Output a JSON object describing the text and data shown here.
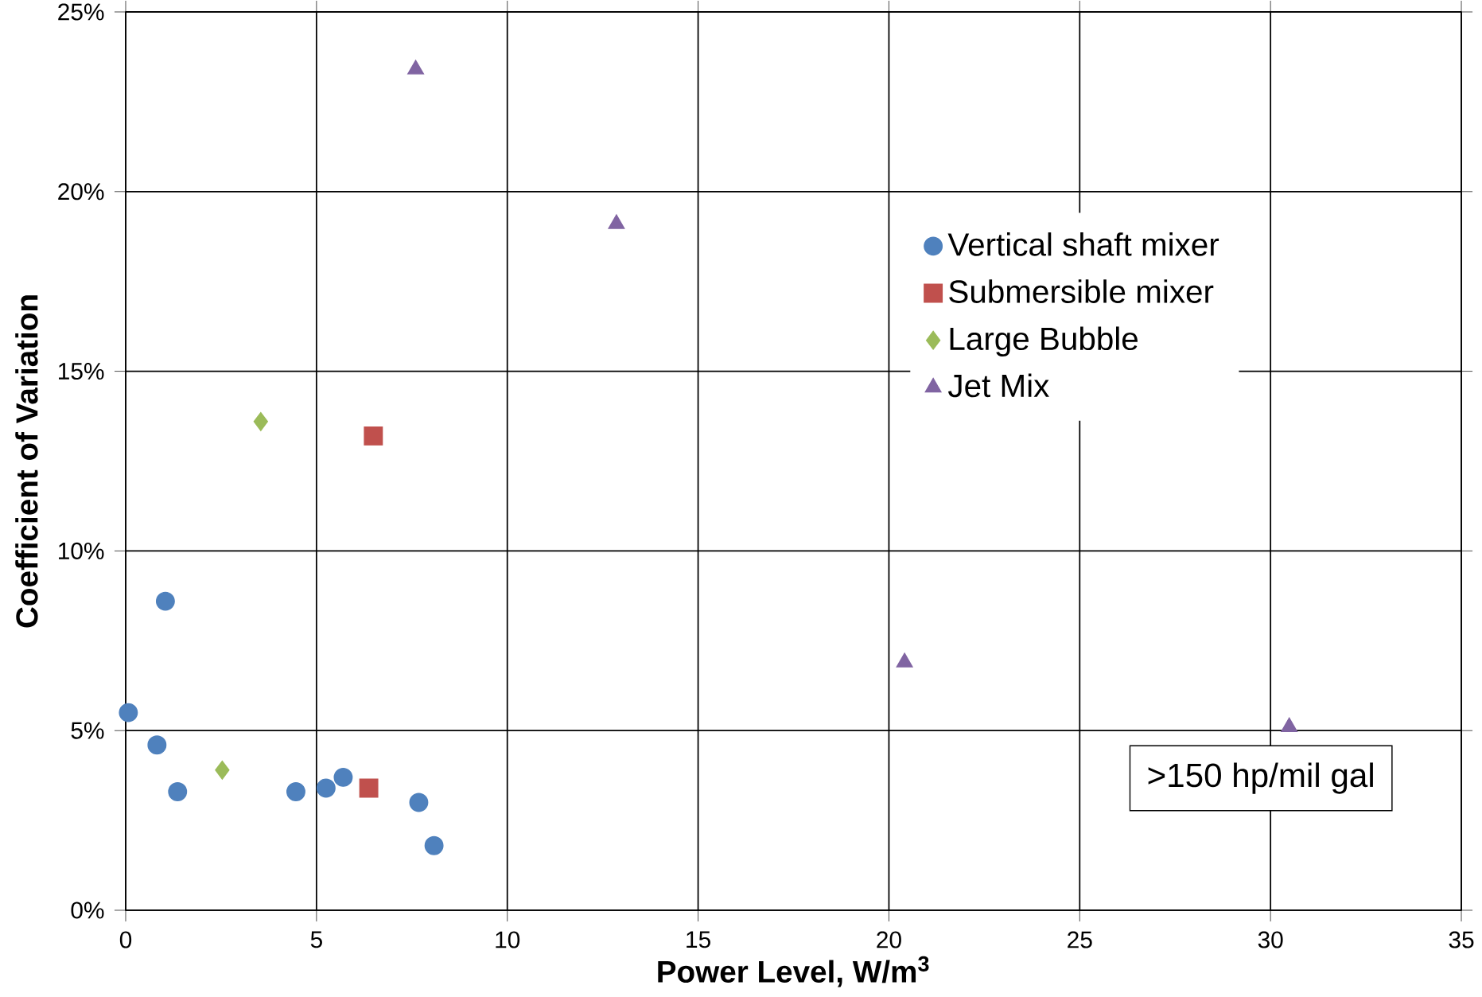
{
  "chart_data": {
    "type": "scatter",
    "xlabel": "Power Level, W/m$^{3}$",
    "ylabel": "Coefficient of Variation",
    "xlim": [
      0,
      35
    ],
    "ylim": [
      0,
      25
    ],
    "xticks": [
      0,
      5,
      10,
      15,
      20,
      25,
      30,
      35
    ],
    "yticks": [
      {
        "value": 0,
        "label": "0%"
      },
      {
        "value": 5,
        "label": "5%"
      },
      {
        "value": 10,
        "label": "10%"
      },
      {
        "value": 15,
        "label": "15%"
      },
      {
        "value": 20,
        "label": "20%"
      },
      {
        "value": 25,
        "label": "25%"
      }
    ],
    "grid": true,
    "legend": "top right",
    "annotations": [
      ">150 hp/mil gal"
    ],
    "series": [
      {
        "name": "Vertical shaft mixer",
        "color": "#4f81bd",
        "marker": "circle",
        "x": [
          0.07,
          1.04,
          0.82,
          1.36,
          4.46,
          5.25,
          5.7,
          7.68,
          8.08
        ],
        "values": [
          5.5,
          8.6,
          4.6,
          3.3,
          3.3,
          3.4,
          3.7,
          3.0,
          1.8
        ]
      },
      {
        "name": "Submersible mixer",
        "color": "#c0504d",
        "marker": "square",
        "x": [
          6.49,
          6.37
        ],
        "values": [
          13.2,
          3.4
        ]
      },
      {
        "name": "Large Bubble",
        "color": "#9bbb59",
        "marker": "diamond",
        "x": [
          3.54,
          2.53
        ],
        "values": [
          13.6,
          3.9
        ]
      },
      {
        "name": "Jet Mix",
        "color": "#8064a2",
        "marker": "triangle",
        "x": [
          7.6,
          12.86,
          20.41,
          30.49
        ],
        "values": [
          23.4,
          19.1,
          6.9,
          5.1
        ]
      }
    ]
  }
}
